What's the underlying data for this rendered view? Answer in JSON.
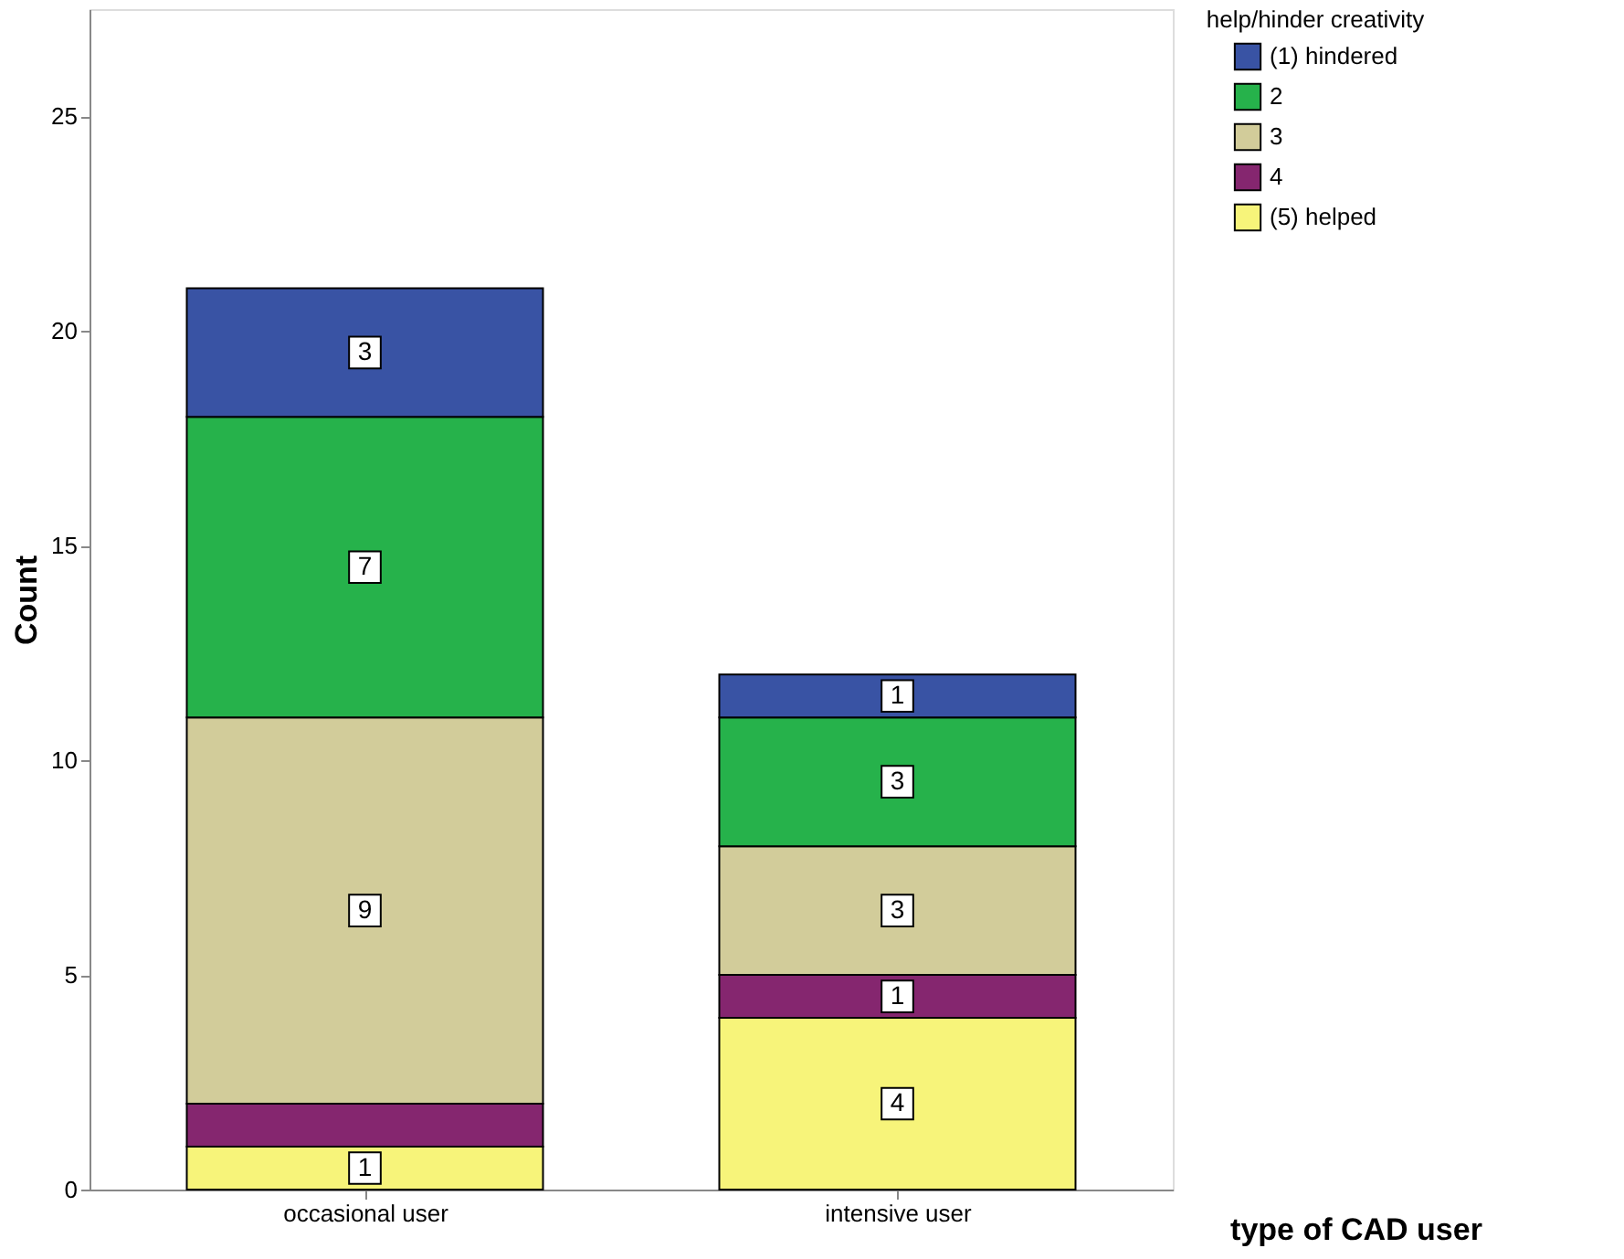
{
  "chart_data": {
    "type": "bar",
    "stacked": true,
    "xlabel": "type of CAD user",
    "ylabel": "Count",
    "legend_title": "help/hinder creativity",
    "legend": "top right",
    "grid": false,
    "categories": [
      "occasional user",
      "intensive user"
    ],
    "ylim": [
      0,
      27.5
    ],
    "yticks": [
      0,
      5,
      10,
      15,
      20,
      25
    ],
    "series": [
      {
        "name": "(5) helped",
        "color": "#f7f47a",
        "values": [
          1,
          4
        ],
        "value_labels": [
          "1",
          "4"
        ]
      },
      {
        "name": "4",
        "color": "#85266f",
        "values": [
          1,
          1
        ],
        "value_labels": [
          null,
          "1"
        ]
      },
      {
        "name": "3",
        "color": "#d2cc9a",
        "values": [
          9,
          3
        ],
        "value_labels": [
          "9",
          "3"
        ]
      },
      {
        "name": "2",
        "color": "#26b24b",
        "values": [
          7,
          3
        ],
        "value_labels": [
          "7",
          "3"
        ]
      },
      {
        "name": "(1) hindered",
        "color": "#3953a4",
        "values": [
          3,
          1
        ],
        "value_labels": [
          "3",
          "1"
        ]
      }
    ]
  }
}
